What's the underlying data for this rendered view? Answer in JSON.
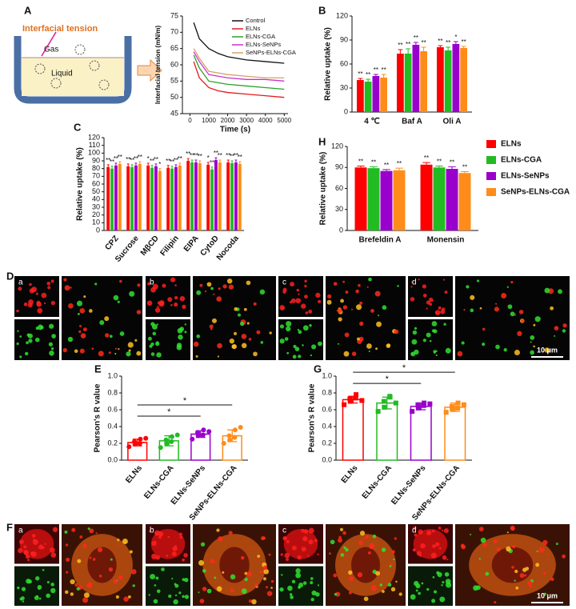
{
  "figure_labels": [
    "A",
    "B",
    "C",
    "H",
    "D",
    "E",
    "G",
    "F"
  ],
  "diagram": {
    "title": "Interfacial tension",
    "gas": "Gas",
    "liquid": "Liquid"
  },
  "micrographs": {
    "D": {
      "labels": [
        "a",
        "b",
        "c",
        "d"
      ],
      "scale_bar": "10 μm"
    },
    "F": {
      "labels": [
        "a",
        "b",
        "c",
        "d"
      ],
      "scale_bar": "10 μm"
    }
  },
  "chart_data": [
    {
      "type": "line",
      "xlabel": "Time (s)",
      "ylabel": "Interfacial tension (mN/m)",
      "x": [
        200,
        500,
        1000,
        1500,
        2000,
        3000,
        4000,
        5000
      ],
      "xlim": [
        -400,
        5200
      ],
      "xticks": [
        0,
        1000,
        2000,
        3000,
        4000,
        5000
      ],
      "ylim": [
        45,
        75
      ],
      "yticks": [
        45,
        50,
        55,
        60,
        65,
        70,
        75
      ],
      "legend": "upper right",
      "series": [
        {
          "name": "Control",
          "color": "#111111",
          "values": [
            73,
            68,
            65,
            63.5,
            62.5,
            61.5,
            61,
            60.5
          ]
        },
        {
          "name": "ELNs",
          "color": "#e41a1c",
          "values": [
            61,
            56,
            53,
            52,
            51.5,
            51,
            50.5,
            50
          ]
        },
        {
          "name": "ELNs-CGA",
          "color": "#2ca02c",
          "values": [
            63,
            59,
            55,
            54.5,
            54,
            53.5,
            53,
            52.5
          ]
        },
        {
          "name": "ELNs-SeNPs",
          "color": "#cc33cc",
          "values": [
            64,
            61,
            57,
            56.5,
            56,
            55.5,
            55.5,
            55
          ]
        },
        {
          "name": "SeNPs-ELNs-CGA",
          "color": "#d9a066",
          "values": [
            65,
            62,
            58,
            57.5,
            57,
            56.5,
            56,
            56
          ]
        }
      ]
    },
    {
      "type": "bar",
      "ylabel": "Relative uptake (%)",
      "categories": [
        "4 ℃",
        "Baf A",
        "Oli A"
      ],
      "ylim": [
        0,
        120
      ],
      "yticks": [
        0,
        30,
        60,
        90,
        120
      ],
      "series": [
        {
          "color": "#ff0000",
          "values": [
            40,
            73,
            81
          ],
          "errors": [
            2,
            5,
            2
          ],
          "annotations": [
            "**",
            "**",
            "**"
          ]
        },
        {
          "color": "#22bb22",
          "values": [
            38,
            73,
            77
          ],
          "errors": [
            3,
            6,
            4
          ],
          "annotations": [
            "**",
            "**",
            "**"
          ]
        },
        {
          "color": "#9900cc",
          "values": [
            45,
            84,
            85
          ],
          "errors": [
            2,
            3,
            3
          ],
          "annotations": [
            "**",
            "**",
            "*"
          ]
        },
        {
          "color": "#ff8c1a",
          "values": [
            43,
            76,
            80
          ],
          "errors": [
            4,
            5,
            2
          ],
          "annotations": [
            "**",
            "**",
            "**"
          ]
        }
      ]
    },
    {
      "type": "bar",
      "ylabel": "Relative uptake (%)",
      "categories": [
        "CPZ",
        "Sucrose",
        "MβCD",
        "Filipin",
        "EIPA",
        "CytoD",
        "Nocoda"
      ],
      "ylim": [
        0,
        120
      ],
      "yticks": [
        0,
        10,
        20,
        30,
        40,
        50,
        60,
        70,
        80,
        90,
        100,
        110,
        120
      ],
      "series": [
        {
          "color": "#ff0000",
          "values": [
            82,
            83,
            84,
            81,
            90,
            85,
            88
          ],
          "errors": [
            3,
            3,
            3,
            3,
            3,
            3,
            3
          ],
          "annotations": [
            "**",
            "**",
            "*",
            "**",
            "**",
            "*",
            "**"
          ]
        },
        {
          "color": "#22bb22",
          "values": [
            80,
            82,
            81,
            80,
            88,
            79,
            87
          ],
          "errors": [
            3,
            3,
            3,
            3,
            3,
            3,
            3
          ],
          "annotations": [
            "**",
            "**",
            "**",
            "**",
            "**",
            "**",
            "**"
          ]
        },
        {
          "color": "#9900cc",
          "values": [
            84,
            84,
            83,
            82,
            88,
            91,
            88
          ],
          "errors": [
            3,
            3,
            3,
            3,
            3,
            3,
            3
          ],
          "annotations": [
            "**",
            "**",
            "**",
            "**",
            "**",
            "**",
            "**"
          ]
        },
        {
          "color": "#ff8c1a",
          "values": [
            86,
            86,
            77,
            84,
            87,
            88,
            86
          ],
          "errors": [
            3,
            3,
            3,
            3,
            3,
            3,
            3
          ],
          "annotations": [
            "**",
            "**",
            "*",
            "**",
            "**",
            "**",
            "**"
          ]
        }
      ]
    },
    {
      "type": "bar",
      "ylabel": "Relative uptake (%)",
      "categories": [
        "Brefeldin A",
        "Monensin"
      ],
      "ylim": [
        0,
        120
      ],
      "yticks": [
        0,
        30,
        60,
        90,
        120
      ],
      "legend": "right",
      "series": [
        {
          "name": "ELNs",
          "color": "#ff0000",
          "values": [
            90,
            94
          ],
          "errors": [
            2,
            3
          ],
          "annotations": [
            "**",
            "**"
          ]
        },
        {
          "name": "ELNs-CGA",
          "color": "#22bb22",
          "values": [
            89,
            90
          ],
          "errors": [
            2,
            2
          ],
          "annotations": [
            "**",
            "**"
          ]
        },
        {
          "name": "ELNs-SeNPs",
          "color": "#9900cc",
          "values": [
            85,
            88
          ],
          "errors": [
            2,
            3
          ],
          "annotations": [
            "**",
            "**"
          ]
        },
        {
          "name": "SeNPs-ELNs-CGA",
          "color": "#ff8c1a",
          "values": [
            86,
            82
          ],
          "errors": [
            3,
            2
          ],
          "annotations": [
            "**",
            "**"
          ]
        }
      ]
    },
    {
      "type": "bar",
      "bar_style": "outline",
      "ylabel": "Pearson's R value",
      "categories": [
        "ELNs",
        "ELNs-CGA",
        "ELNs-SeNPs",
        "SeNPs-ELNs-CGA"
      ],
      "colors": [
        "#ff0000",
        "#22bb22",
        "#9900cc",
        "#ff8c1a"
      ],
      "values": [
        0.21,
        0.23,
        0.31,
        0.29
      ],
      "errors": [
        0.04,
        0.06,
        0.04,
        0.07
      ],
      "points": [
        [
          0.16,
          0.19,
          0.22,
          0.25,
          0.2,
          0.26
        ],
        [
          0.15,
          0.2,
          0.24,
          0.28,
          0.22,
          0.3
        ],
        [
          0.25,
          0.29,
          0.33,
          0.36,
          0.3,
          0.34
        ],
        [
          0.2,
          0.24,
          0.29,
          0.36,
          0.27,
          0.39
        ]
      ],
      "comparisons": [
        {
          "between": [
            "ELNs",
            "ELNs-SeNPs"
          ],
          "label": "*"
        },
        {
          "between": [
            "ELNs",
            "SeNPs-ELNs-CGA"
          ],
          "label": "*"
        }
      ],
      "ylim": [
        0,
        1.0
      ],
      "yticks": [
        {
          "value": 0,
          "label": "0.0"
        },
        {
          "value": 0.2,
          "label": "0.2"
        },
        {
          "value": 0.4,
          "label": "0.4"
        },
        {
          "value": 0.6,
          "label": "0.6"
        },
        {
          "value": 0.8,
          "label": "0.8"
        },
        {
          "value": 1.0,
          "label": "1.0"
        }
      ]
    },
    {
      "type": "bar",
      "bar_style": "outline",
      "ylabel": "Pearson's R value",
      "categories": [
        "ELNs",
        "ELNs-CGA",
        "ELNs-SeNPs",
        "SeNPs-ELNs-CGA"
      ],
      "colors": [
        "#ff0000",
        "#22bb22",
        "#9900cc",
        "#ff8c1a"
      ],
      "values": [
        0.72,
        0.68,
        0.64,
        0.63
      ],
      "errors": [
        0.04,
        0.07,
        0.04,
        0.05
      ],
      "points": [
        [
          0.66,
          0.7,
          0.73,
          0.78,
          0.74,
          0.71
        ],
        [
          0.58,
          0.63,
          0.7,
          0.75,
          0.76,
          0.68
        ],
        [
          0.58,
          0.62,
          0.66,
          0.68,
          0.65,
          0.67
        ],
        [
          0.57,
          0.61,
          0.64,
          0.68,
          0.62,
          0.66
        ]
      ],
      "comparisons": [
        {
          "between": [
            "ELNs",
            "ELNs-SeNPs"
          ],
          "label": "*"
        },
        {
          "between": [
            "ELNs",
            "SeNPs-ELNs-CGA"
          ],
          "label": "*"
        }
      ],
      "ylim": [
        0,
        1.0
      ],
      "yticks": [
        {
          "value": 0,
          "label": "0.0"
        },
        {
          "value": 0.2,
          "label": "0.2"
        },
        {
          "value": 0.4,
          "label": "0.4"
        },
        {
          "value": 0.6,
          "label": "0.6"
        },
        {
          "value": 0.8,
          "label": "0.8"
        },
        {
          "value": 1.0,
          "label": "1.0"
        }
      ]
    }
  ]
}
